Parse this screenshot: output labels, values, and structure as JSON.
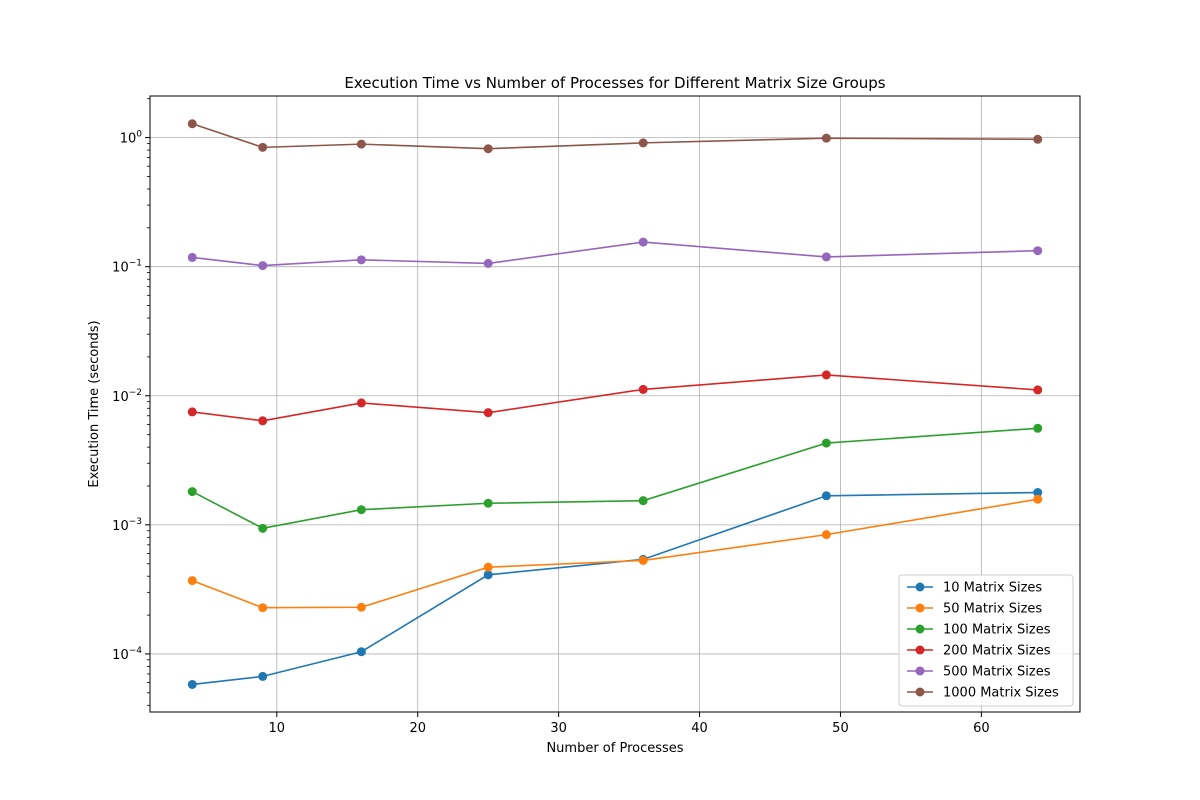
{
  "chart_data": {
    "type": "line",
    "title": "Execution Time vs Number of Processes for Different Matrix Size Groups",
    "xlabel": "Number of Processes",
    "ylabel": "Execution Time (seconds)",
    "xscale": "linear",
    "yscale": "log",
    "xlim": [
      1,
      67
    ],
    "ylim": [
      3.55e-05,
      2.1
    ],
    "x_ticks": [
      10,
      20,
      30,
      40,
      50,
      60
    ],
    "y_ticks": [
      {
        "value": 0.0001,
        "base": "10",
        "exp": "−4"
      },
      {
        "value": 0.001,
        "base": "10",
        "exp": "−3"
      },
      {
        "value": 0.01,
        "base": "10",
        "exp": "−2"
      },
      {
        "value": 0.1,
        "base": "10",
        "exp": "−1"
      },
      {
        "value": 1,
        "base": "10",
        "exp": "0"
      }
    ],
    "grid": true,
    "legend_position": "lower-right",
    "x": [
      4,
      9,
      16,
      25,
      36,
      49,
      64
    ],
    "series": [
      {
        "name": "10 Matrix Sizes",
        "color": "#1f77b4",
        "values": [
          5.8e-05,
          6.7e-05,
          0.000104,
          0.00041,
          0.00054,
          0.00168,
          0.00178
        ]
      },
      {
        "name": "50 Matrix Sizes",
        "color": "#ff7f0e",
        "values": [
          0.00037,
          0.000228,
          0.00023,
          0.00047,
          0.00053,
          0.00084,
          0.00158
        ]
      },
      {
        "name": "100 Matrix Sizes",
        "color": "#2ca02c",
        "values": [
          0.00181,
          0.00094,
          0.00131,
          0.00147,
          0.00154,
          0.0043,
          0.0056
        ]
      },
      {
        "name": "200 Matrix Sizes",
        "color": "#d62728",
        "values": [
          0.0075,
          0.0064,
          0.0088,
          0.0074,
          0.0112,
          0.0145,
          0.0111
        ]
      },
      {
        "name": "500 Matrix Sizes",
        "color": "#9467bd",
        "values": [
          0.118,
          0.102,
          0.113,
          0.106,
          0.155,
          0.119,
          0.133
        ]
      },
      {
        "name": "1000 Matrix Sizes",
        "color": "#8c564b",
        "values": [
          1.28,
          0.84,
          0.89,
          0.82,
          0.91,
          0.99,
          0.97
        ]
      }
    ]
  }
}
